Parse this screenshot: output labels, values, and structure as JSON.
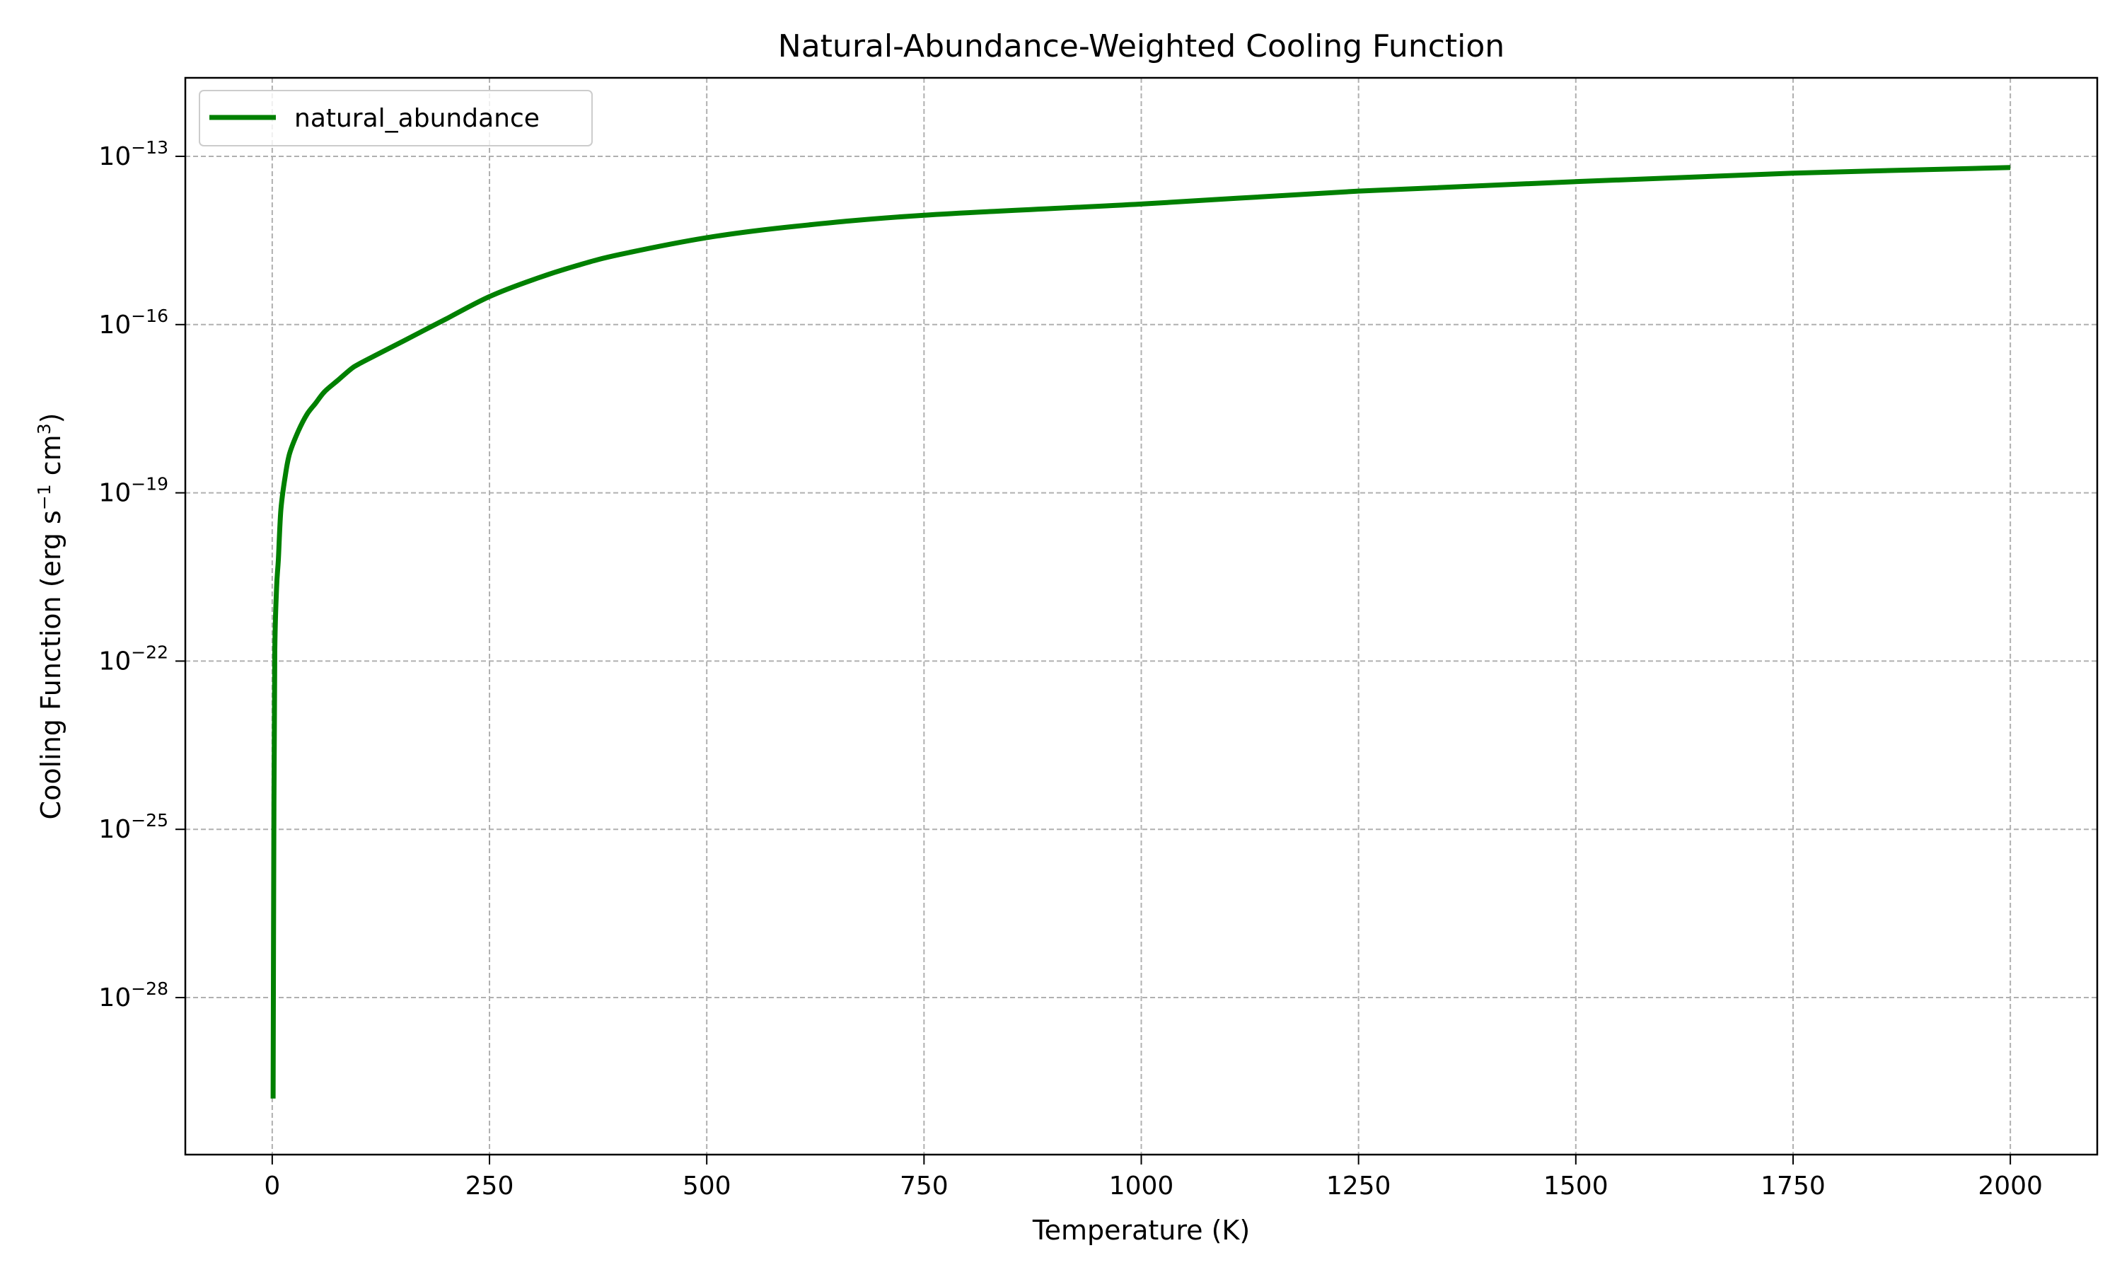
{
  "chart_data": {
    "type": "line",
    "title": "Natural-Abundance-Weighted Cooling Function",
    "xlabel": "Temperature (K)",
    "ylabel": {
      "prefix": "Cooling Function (erg s",
      "exp1": "−1",
      "middle": " cm",
      "exp2": "3",
      "suffix": ")"
    },
    "xscale": "linear",
    "yscale": "log",
    "xlim": [
      -100,
      2100
    ],
    "ylim_log10": [
      -30.8,
      -11.6
    ],
    "xticks": [
      {
        "value": 0,
        "label": "0"
      },
      {
        "value": 250,
        "label": "250"
      },
      {
        "value": 500,
        "label": "500"
      },
      {
        "value": 750,
        "label": "750"
      },
      {
        "value": 1000,
        "label": "1000"
      },
      {
        "value": 1250,
        "label": "1250"
      },
      {
        "value": 1500,
        "label": "1500"
      },
      {
        "value": 1750,
        "label": "1750"
      },
      {
        "value": 2000,
        "label": "2000"
      }
    ],
    "yticks": [
      {
        "log10": -13,
        "base": "10",
        "exp": "−13"
      },
      {
        "log10": -16,
        "base": "10",
        "exp": "−16"
      },
      {
        "log10": -19,
        "base": "10",
        "exp": "−19"
      },
      {
        "log10": -22,
        "base": "10",
        "exp": "−22"
      },
      {
        "log10": -25,
        "base": "10",
        "exp": "−25"
      },
      {
        "log10": -28,
        "base": "10",
        "exp": "−28"
      }
    ],
    "grid": true,
    "legend_position": "upper left",
    "series": [
      {
        "name": "natural_abundance",
        "color": "#008000",
        "x": [
          1,
          2,
          3,
          5,
          7,
          10,
          15,
          20,
          30,
          40,
          50,
          60,
          75,
          90,
          100,
          125,
          150,
          175,
          200,
          250,
          300,
          350,
          400,
          500,
          600,
          750,
          1000,
          1250,
          1500,
          1750,
          2000
        ],
        "log10_y": [
          -29.8,
          -24.5,
          -21.8,
          -20.7,
          -20.2,
          -19.3,
          -18.7,
          -18.3,
          -17.9,
          -17.6,
          -17.4,
          -17.2,
          -17.0,
          -16.8,
          -16.7,
          -16.5,
          -16.3,
          -16.1,
          -15.9,
          -15.5,
          -15.2,
          -14.95,
          -14.75,
          -14.45,
          -14.25,
          -14.05,
          -13.85,
          -13.62,
          -13.45,
          -13.3,
          -13.2
        ]
      }
    ]
  }
}
